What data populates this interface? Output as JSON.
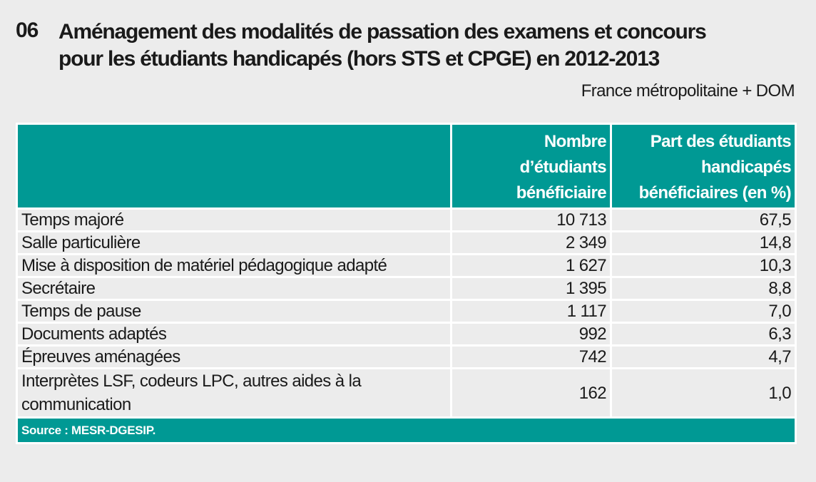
{
  "figure_number": "06",
  "title_lines": [
    "Aménagement des modalités de passation des examens et concours",
    "pour les étudiants handicapés (hors STS et CPGE) en 2012-2013"
  ],
  "subtitle": "France métropolitaine + DOM",
  "colors": {
    "accent": "#009994",
    "background": "#ececec"
  },
  "table": {
    "headers": [
      "",
      "Nombre d’étudiants bénéficiaire",
      "Part des étudiants handicapés bénéficiaires (en %)"
    ],
    "header_lines": {
      "col2": [
        "Nombre",
        "d’étudiants",
        "bénéficiaire"
      ],
      "col3": [
        "Part des étudiants",
        "handicapés",
        "bénéficiaires (en %)"
      ]
    },
    "rows": [
      {
        "label": "Temps majoré",
        "count": "10 713",
        "percent": "67,5"
      },
      {
        "label": "Salle particulière",
        "count": "2 349",
        "percent": "14,8"
      },
      {
        "label": "Mise à disposition de matériel pédagogique adapté",
        "count": "1 627",
        "percent": "10,3"
      },
      {
        "label": "Secrétaire",
        "count": "1 395",
        "percent": "8,8"
      },
      {
        "label": "Temps de pause",
        "count": "1 117",
        "percent": "7,0"
      },
      {
        "label": "Documents adaptés",
        "count": "992",
        "percent": "6,3"
      },
      {
        "label": "Épreuves aménagées",
        "count": "742",
        "percent": "4,7"
      },
      {
        "label": "Interprètes LSF, codeurs LPC, autres aides à la communication",
        "count": "162",
        "percent": "1,0"
      }
    ],
    "source": "Source : MESR-DGESIP."
  }
}
